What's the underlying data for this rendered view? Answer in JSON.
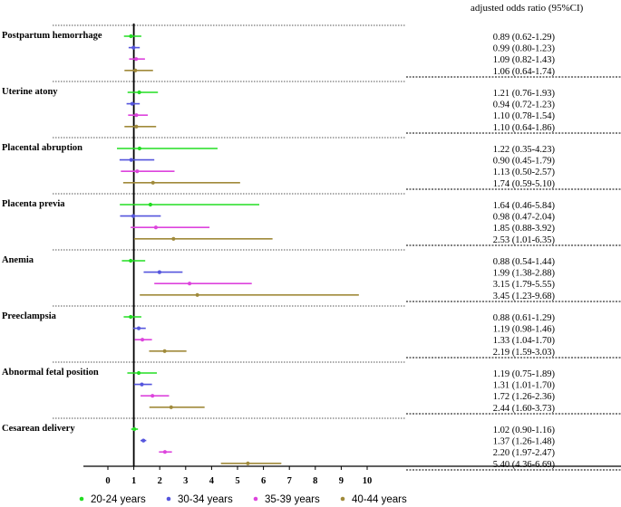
{
  "chart_data": {
    "type": "forest",
    "header": "adjusted odds ratio (95%CI)",
    "x_ticks": [
      "0",
      "1",
      "2",
      "3",
      "4",
      "5",
      "6",
      "7",
      "8",
      "9",
      "10"
    ],
    "xlim": [
      0,
      10
    ],
    "reference_line": 1,
    "series": [
      {
        "name": "20-24 years",
        "color": "#22dd22"
      },
      {
        "name": "30-34 years",
        "color": "#5555dd"
      },
      {
        "name": "35-39 years",
        "color": "#dd44dd"
      },
      {
        "name": "40-44 years",
        "color": "#a08a3a"
      }
    ],
    "groups": [
      {
        "label": "Postpartum hemorrhage",
        "rows": [
          {
            "or": 0.89,
            "lo": 0.62,
            "hi": 1.29,
            "text": "0.89 (0.62-1.29)"
          },
          {
            "or": 0.99,
            "lo": 0.8,
            "hi": 1.23,
            "text": "0.99 (0.80-1.23)"
          },
          {
            "or": 1.09,
            "lo": 0.82,
            "hi": 1.43,
            "text": "1.09 (0.82-1.43)"
          },
          {
            "or": 1.06,
            "lo": 0.64,
            "hi": 1.74,
            "text": "1.06 (0.64-1.74)"
          }
        ]
      },
      {
        "label": "Uterine atony",
        "rows": [
          {
            "or": 1.21,
            "lo": 0.76,
            "hi": 1.93,
            "text": "1.21 (0.76-1.93)"
          },
          {
            "or": 0.94,
            "lo": 0.72,
            "hi": 1.23,
            "text": "0.94 (0.72-1.23)"
          },
          {
            "or": 1.1,
            "lo": 0.78,
            "hi": 1.54,
            "text": "1.10 (0.78-1.54)"
          },
          {
            "or": 1.1,
            "lo": 0.64,
            "hi": 1.86,
            "text": "1.10 (0.64-1.86)"
          }
        ]
      },
      {
        "label": "Placental abruption",
        "rows": [
          {
            "or": 1.22,
            "lo": 0.35,
            "hi": 4.23,
            "text": "1.22 (0.35-4.23)"
          },
          {
            "or": 0.9,
            "lo": 0.45,
            "hi": 1.79,
            "text": "0.90 (0.45-1.79)"
          },
          {
            "or": 1.13,
            "lo": 0.5,
            "hi": 2.57,
            "text": "1.13 (0.50-2.57)"
          },
          {
            "or": 1.74,
            "lo": 0.59,
            "hi": 5.1,
            "text": "1.74 (0.59-5.10)"
          }
        ]
      },
      {
        "label": "Placenta previa",
        "rows": [
          {
            "or": 1.64,
            "lo": 0.46,
            "hi": 5.84,
            "text": "1.64 (0.46-5.84)"
          },
          {
            "or": 0.98,
            "lo": 0.47,
            "hi": 2.04,
            "text": "0.98 (0.47-2.04)"
          },
          {
            "or": 1.85,
            "lo": 0.88,
            "hi": 3.92,
            "text": "1.85 (0.88-3.92)"
          },
          {
            "or": 2.53,
            "lo": 1.01,
            "hi": 6.35,
            "text": "2.53 (1.01-6.35)"
          }
        ]
      },
      {
        "label": "Anemia",
        "rows": [
          {
            "or": 0.88,
            "lo": 0.54,
            "hi": 1.44,
            "text": "0.88 (0.54-1.44)"
          },
          {
            "or": 1.99,
            "lo": 1.38,
            "hi": 2.88,
            "text": "1.99 (1.38-2.88)"
          },
          {
            "or": 3.15,
            "lo": 1.79,
            "hi": 5.55,
            "text": "3.15 (1.79-5.55)"
          },
          {
            "or": 3.45,
            "lo": 1.23,
            "hi": 9.68,
            "text": "3.45 (1.23-9.68)"
          }
        ]
      },
      {
        "label": "Preeclampsia",
        "rows": [
          {
            "or": 0.88,
            "lo": 0.61,
            "hi": 1.29,
            "text": "0.88 (0.61-1.29)"
          },
          {
            "or": 1.19,
            "lo": 0.98,
            "hi": 1.46,
            "text": "1.19 (0.98-1.46)"
          },
          {
            "or": 1.33,
            "lo": 1.04,
            "hi": 1.7,
            "text": "1.33 (1.04-1.70)"
          },
          {
            "or": 2.19,
            "lo": 1.59,
            "hi": 3.03,
            "text": "2.19 (1.59-3.03)"
          }
        ]
      },
      {
        "label": "Abnormal fetal position",
        "rows": [
          {
            "or": 1.19,
            "lo": 0.75,
            "hi": 1.89,
            "text": "1.19 (0.75-1.89)"
          },
          {
            "or": 1.31,
            "lo": 1.01,
            "hi": 1.7,
            "text": "1.31 (1.01-1.70)"
          },
          {
            "or": 1.72,
            "lo": 1.26,
            "hi": 2.36,
            "text": "1.72 (1.26-2.36)"
          },
          {
            "or": 2.44,
            "lo": 1.6,
            "hi": 3.73,
            "text": "2.44 (1.60-3.73)"
          }
        ]
      },
      {
        "label": "Cesarean delivery",
        "rows": [
          {
            "or": 1.02,
            "lo": 0.9,
            "hi": 1.16,
            "text": "1.02 (0.90-1.16)"
          },
          {
            "or": 1.37,
            "lo": 1.26,
            "hi": 1.48,
            "text": "1.37 (1.26-1.48)"
          },
          {
            "or": 2.2,
            "lo": 1.97,
            "hi": 2.47,
            "text": "2.20 (1.97-2.47)"
          },
          {
            "or": 5.4,
            "lo": 4.36,
            "hi": 6.69,
            "text": "5.40 (4.36-6.69)"
          }
        ]
      }
    ]
  }
}
